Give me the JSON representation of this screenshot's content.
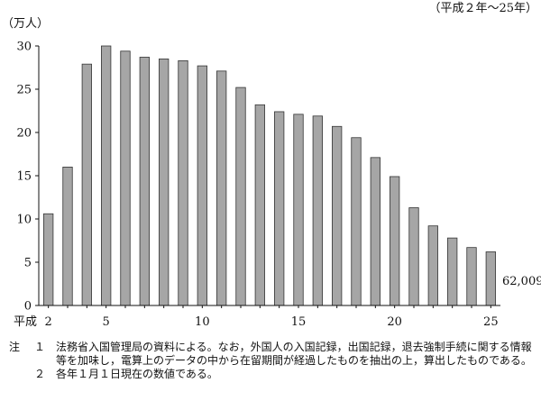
{
  "chart_data": {
    "type": "bar",
    "title": "",
    "period_label": "（平成２年～25年）",
    "unit_label": "（万人）",
    "xlabel": "",
    "ylabel": "",
    "era_prefix": "平成",
    "categories": [
      2,
      3,
      4,
      5,
      6,
      7,
      8,
      9,
      10,
      11,
      12,
      13,
      14,
      15,
      16,
      17,
      18,
      19,
      20,
      21,
      22,
      23,
      24,
      25
    ],
    "values": [
      10.6,
      16.0,
      27.9,
      30.0,
      29.4,
      28.7,
      28.5,
      28.3,
      27.7,
      27.1,
      25.2,
      23.2,
      22.4,
      22.1,
      21.9,
      20.7,
      19.4,
      17.1,
      14.9,
      11.3,
      9.2,
      7.8,
      6.7,
      6.2
    ],
    "xtick_labels": [
      "2",
      "5",
      "10",
      "15",
      "20",
      "25"
    ],
    "ylim": [
      0,
      30
    ],
    "yticks": [
      0,
      5,
      10,
      15,
      20,
      25,
      30
    ],
    "last_value_label": "62,009",
    "bar_color": "#a6a6a6",
    "bar_edge_color": "#333333",
    "grid": false
  },
  "notes": {
    "lead": "注",
    "items": [
      {
        "num": "１",
        "text": "法務省入国管理局の資料による。なお，外国人の入国記録，出国記録，退去強制手続に関する情報等を加味し，電算上のデータの中から在留期間が経過したものを抽出の上，算出したものである。"
      },
      {
        "num": "２",
        "text": "各年１月１日現在の数値である。"
      }
    ]
  }
}
